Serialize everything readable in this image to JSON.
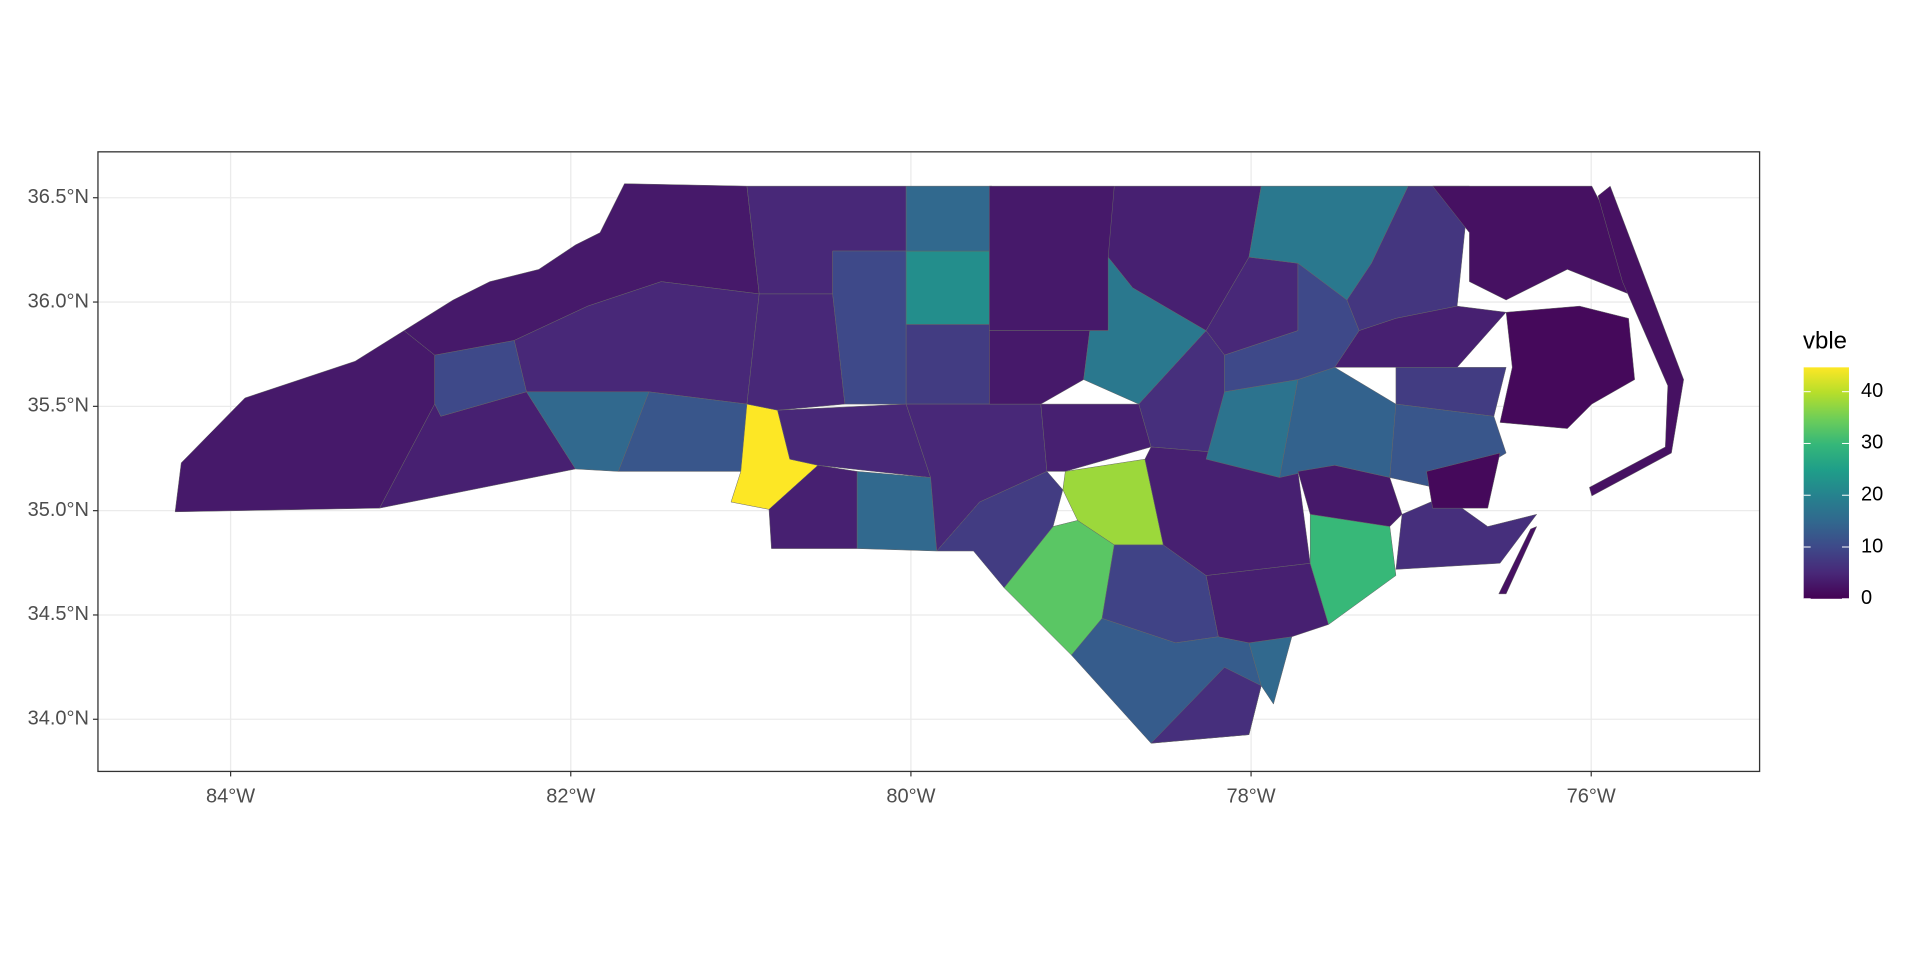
{
  "chart_data": {
    "type": "choropleth",
    "legend_title": "vble",
    "values": [
      3,
      10,
      4,
      3,
      5,
      15,
      12,
      44.7,
      5,
      5,
      10,
      22,
      15,
      8,
      5,
      4,
      15,
      5,
      3,
      3,
      18,
      6,
      4,
      38,
      33,
      9,
      13,
      15,
      4,
      6,
      8,
      4,
      30,
      4,
      5,
      18,
      10,
      17,
      14,
      7,
      4,
      8,
      12,
      3,
      6,
      2,
      1,
      1,
      2,
      2
    ],
    "colorlim": [
      0,
      44.7
    ],
    "colorticks": [
      0,
      10,
      20,
      30,
      40
    ],
    "xlim": [
      -84.78,
      -75.01
    ],
    "ylim": [
      33.75,
      36.72
    ],
    "xticks": [
      {
        "value": -84,
        "label": "84°W"
      },
      {
        "value": -82,
        "label": "82°W"
      },
      {
        "value": -80,
        "label": "80°W"
      },
      {
        "value": -78,
        "label": "78°W"
      },
      {
        "value": -76,
        "label": "76°W"
      }
    ],
    "yticks": [
      {
        "value": 34.0,
        "label": "34.0°N"
      },
      {
        "value": 34.5,
        "label": "34.5°N"
      },
      {
        "value": 35.0,
        "label": "35.0°N"
      },
      {
        "value": 35.5,
        "label": "35.5°N"
      },
      {
        "value": 36.0,
        "label": "36.0°N"
      },
      {
        "value": 36.5,
        "label": "36.5°N"
      }
    ],
    "grid": true
  }
}
